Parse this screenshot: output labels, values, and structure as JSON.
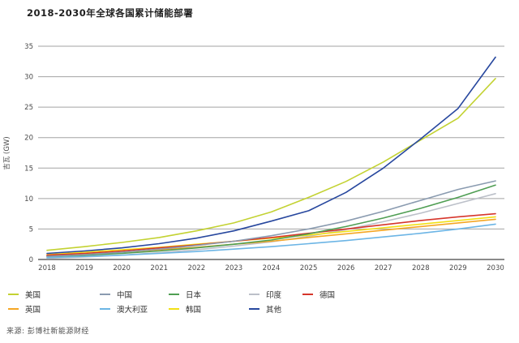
{
  "title": "2018-2030年全球各国累计储能部署",
  "source": "来源: 彭博社新能源财经",
  "chart_data": {
    "type": "line",
    "title": "2018-2030年全球各国累计储能部署",
    "xlabel": "",
    "ylabel": "吉瓦 (GW)",
    "ylim": [
      0,
      35
    ],
    "ytick_step": 5,
    "yticks": [
      0,
      5,
      10,
      15,
      20,
      25,
      30,
      35
    ],
    "grid": "horizontal",
    "legend_position": "bottom",
    "x": [
      2018,
      2019,
      2020,
      2021,
      2022,
      2023,
      2024,
      2025,
      2026,
      2027,
      2028,
      2029,
      2030
    ],
    "series": [
      {
        "id": "india",
        "name": "印度",
        "color": "#bcc0c9",
        "values": [
          0.2,
          0.4,
          0.7,
          1.1,
          1.6,
          2.2,
          2.9,
          3.8,
          4.9,
          6.2,
          7.6,
          9.2,
          10.8
        ]
      },
      {
        "id": "australia",
        "name": "澳大利亚",
        "color": "#6cb5e5",
        "values": [
          0.3,
          0.5,
          0.7,
          1.0,
          1.3,
          1.7,
          2.1,
          2.6,
          3.1,
          3.7,
          4.3,
          5.0,
          5.8
        ]
      },
      {
        "id": "uk",
        "name": "英国",
        "color": "#f5a623",
        "values": [
          0.6,
          0.9,
          1.2,
          1.6,
          2.0,
          2.5,
          3.0,
          3.6,
          4.2,
          4.8,
          5.4,
          6.0,
          6.6
        ]
      },
      {
        "id": "korea",
        "name": "韩国",
        "color": "#f2e015",
        "values": [
          0.8,
          1.2,
          1.6,
          2.0,
          2.5,
          3.0,
          3.5,
          4.0,
          4.6,
          5.2,
          5.8,
          6.4,
          7.0
        ]
      },
      {
        "id": "germany",
        "name": "德国",
        "color": "#d6362b",
        "values": [
          0.7,
          1.0,
          1.4,
          1.9,
          2.4,
          3.0,
          3.6,
          4.3,
          5.0,
          5.7,
          6.4,
          7.0,
          7.5
        ]
      },
      {
        "id": "japan",
        "name": "日本",
        "color": "#4f9e53",
        "values": [
          0.5,
          0.7,
          1.0,
          1.4,
          1.9,
          2.5,
          3.2,
          4.2,
          5.4,
          6.8,
          8.4,
          10.2,
          12.2
        ]
      },
      {
        "id": "china",
        "name": "中国",
        "color": "#8a9bb0",
        "values": [
          0.5,
          0.8,
          1.2,
          1.7,
          2.3,
          3.0,
          3.9,
          5.0,
          6.3,
          7.9,
          9.7,
          11.5,
          12.9
        ]
      },
      {
        "id": "us",
        "name": "美国",
        "color": "#c3d232",
        "values": [
          1.5,
          2.1,
          2.8,
          3.6,
          4.7,
          6.0,
          7.8,
          10.2,
          12.8,
          16.0,
          19.6,
          23.2,
          29.7
        ]
      },
      {
        "id": "others",
        "name": "其他",
        "color": "#27479e",
        "values": [
          1.0,
          1.4,
          1.9,
          2.6,
          3.5,
          4.7,
          6.3,
          8.0,
          11.0,
          15.0,
          19.8,
          24.8,
          33.2
        ]
      }
    ],
    "legend_rows": [
      [
        "us",
        "china",
        "japan",
        "india",
        "germany"
      ],
      [
        "uk",
        "australia",
        "korea",
        "others"
      ]
    ]
  }
}
